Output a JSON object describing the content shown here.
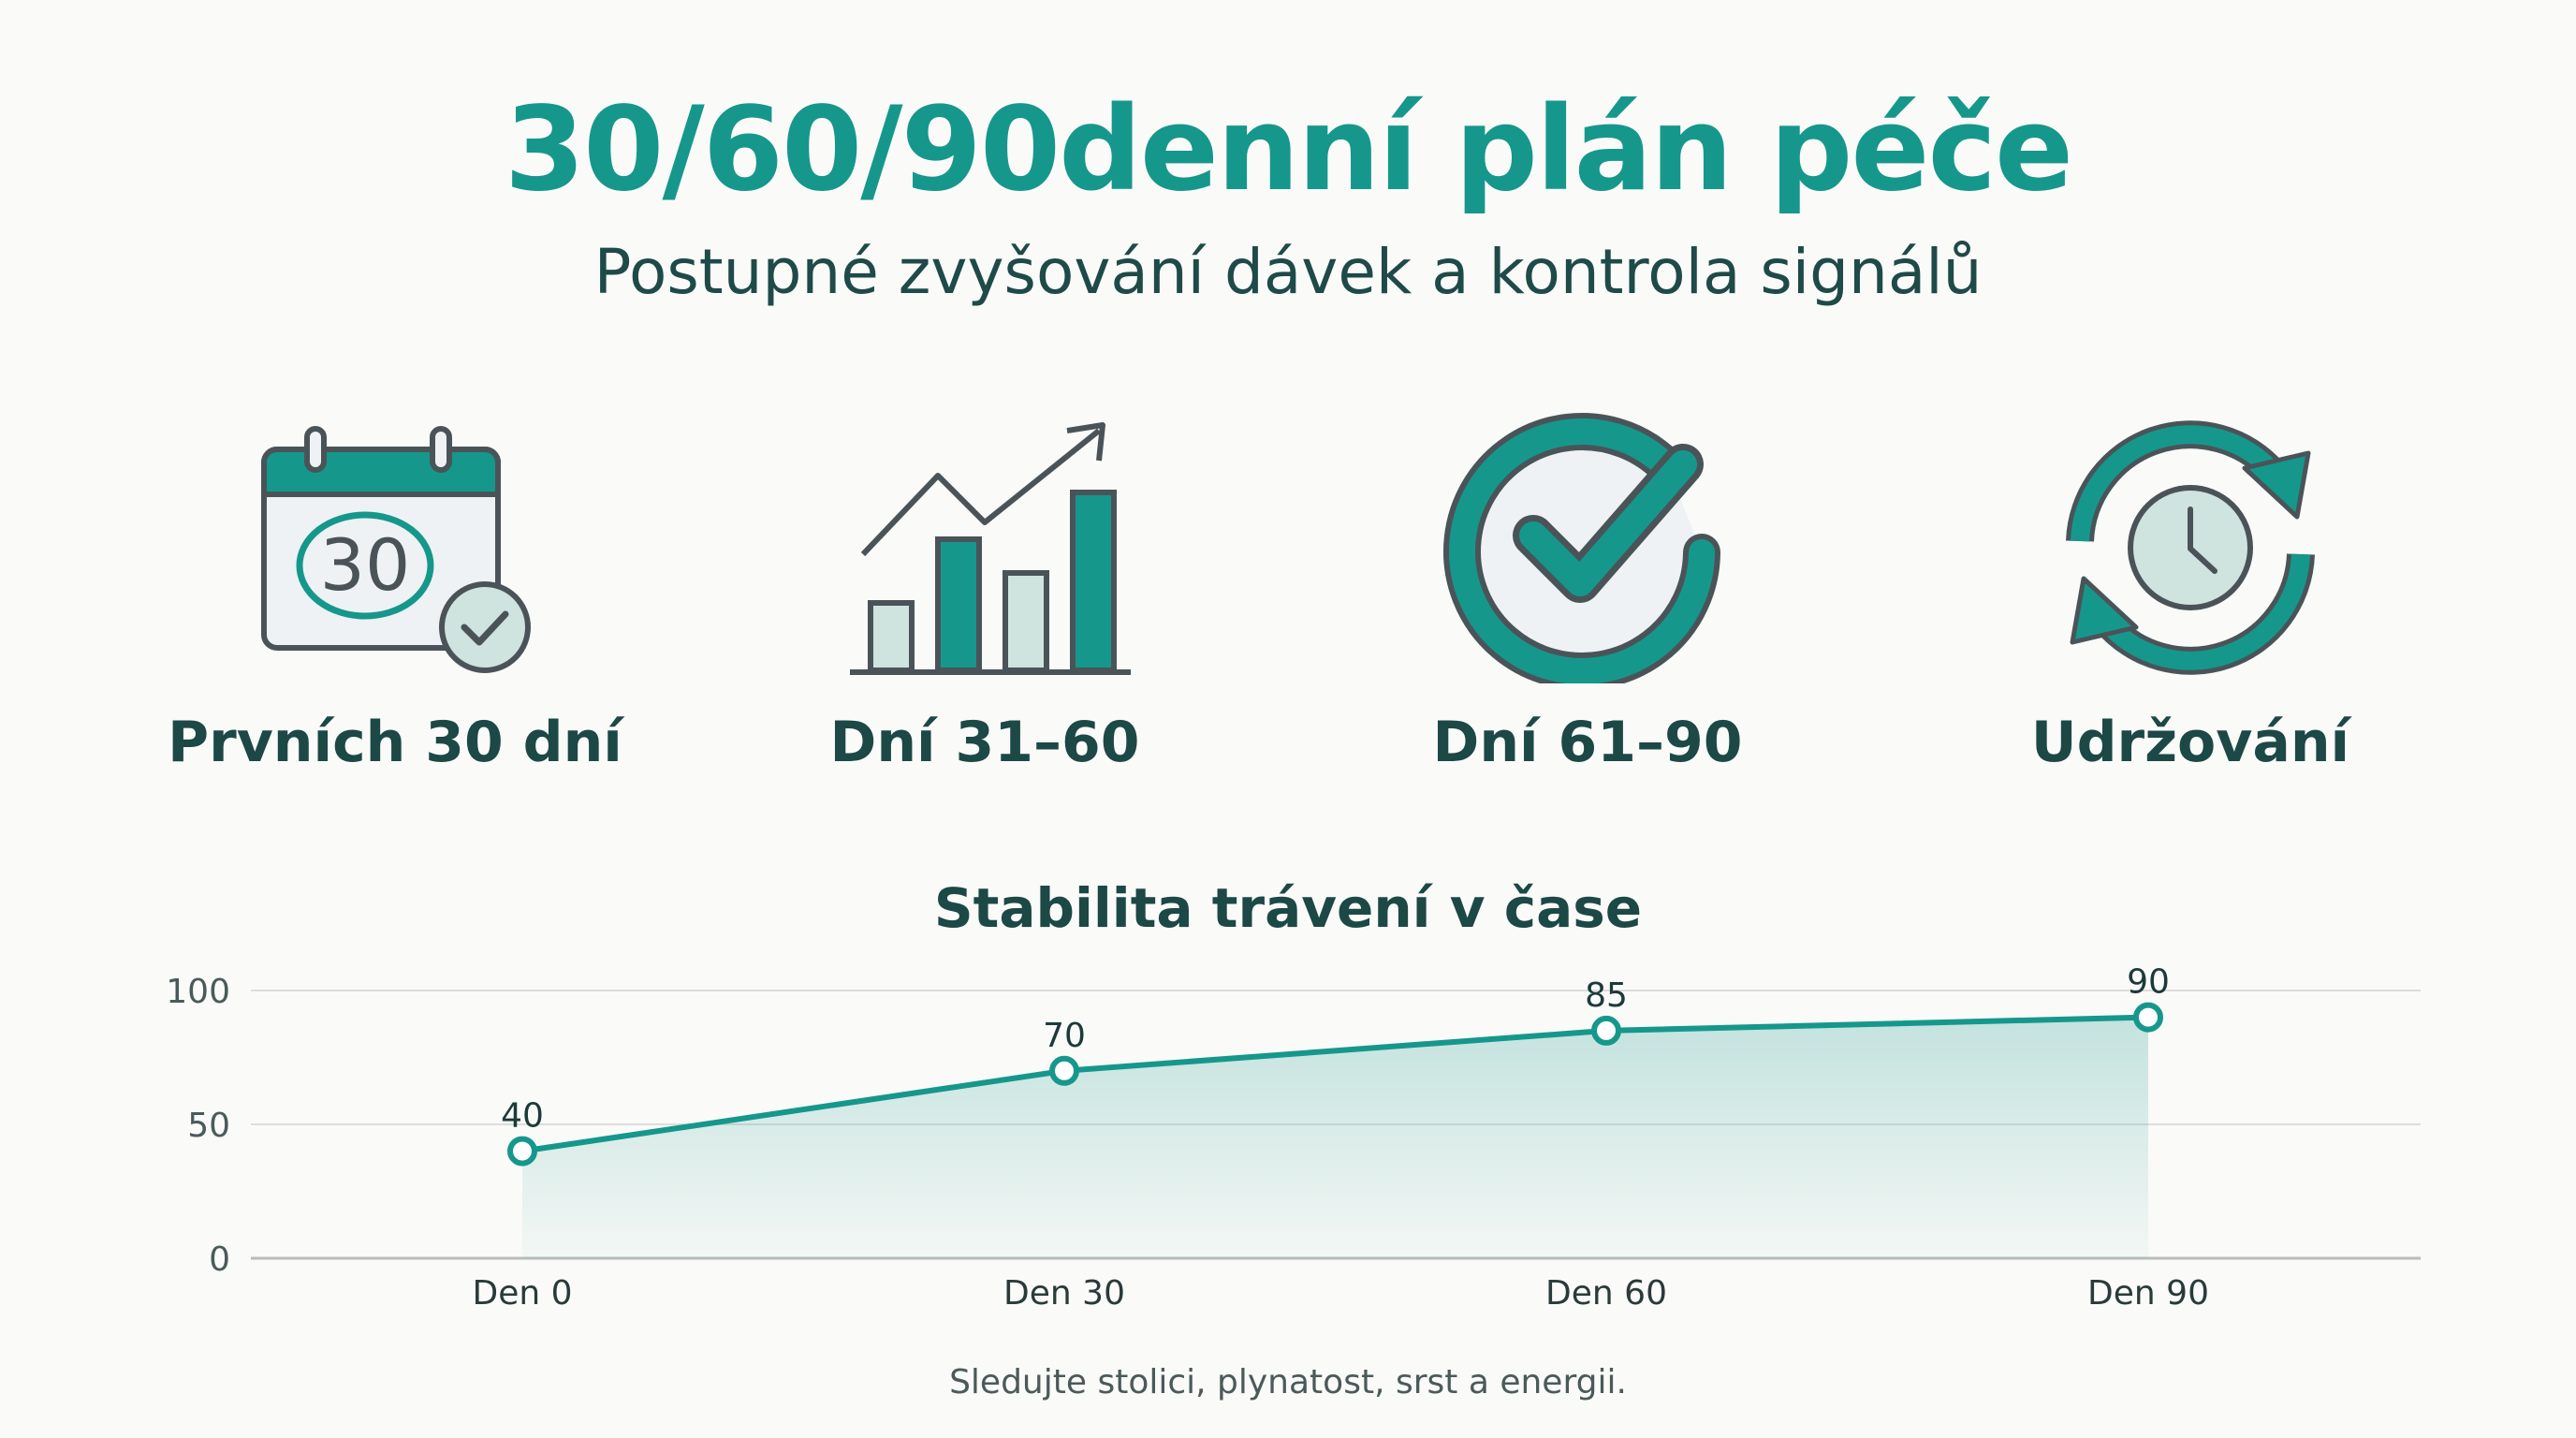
{
  "header": {
    "title": "30/60/90denní plán péče",
    "subtitle": "Postupné zvyšování dávek a kontrola signálů"
  },
  "phases": [
    {
      "label": "Prvních 30 dní",
      "icon": "calendar-30-check-icon",
      "icon_text": "30"
    },
    {
      "label": "Dní 31–60",
      "icon": "growth-bar-chart-icon"
    },
    {
      "label": "Dní 61–90",
      "icon": "check-circle-icon"
    },
    {
      "label": "Udržování",
      "icon": "refresh-clock-icon"
    }
  ],
  "colors": {
    "accent": "#16978c",
    "dark": "#1c4846",
    "icon_stroke": "#4a5458",
    "icon_fill_light": "#cfe3df",
    "icon_bg": "#eef2f4"
  },
  "chart_data": {
    "type": "area",
    "title": "Stabilita trávení v čase",
    "categories": [
      "Den 0",
      "Den 30",
      "Den 60",
      "Den 90"
    ],
    "values": [
      40,
      70,
      85,
      90
    ],
    "ylim": [
      0,
      100
    ],
    "yticks": [
      0,
      50,
      100
    ],
    "grid": true,
    "data_labels": [
      "40",
      "70",
      "85",
      "90"
    ]
  },
  "footnote": "Sledujte stolici, plynatost, srst a energii."
}
